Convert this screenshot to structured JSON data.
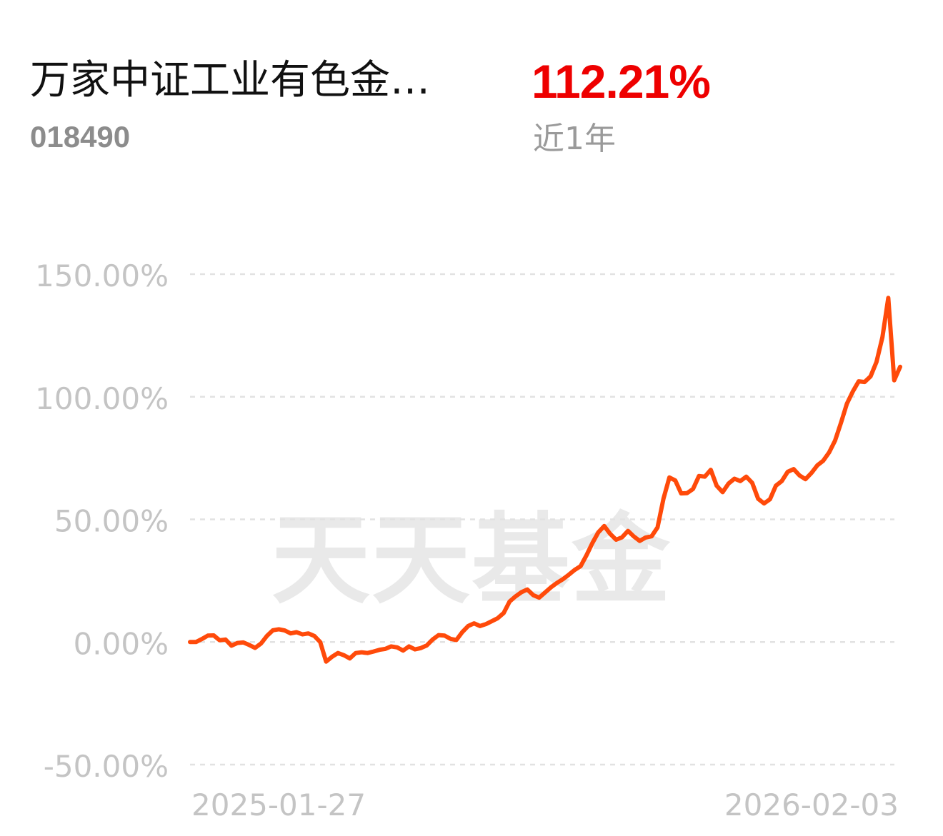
{
  "fund": {
    "name": "万家中证工业有色金…",
    "code": "018490"
  },
  "return": {
    "value": "112.21%",
    "period": "近1年"
  },
  "watermark": "天天基金",
  "colors": {
    "line": "#ff4a0a",
    "return": "#ee0000",
    "axis_text": "#c4c4c4",
    "grid": "#e2e2e2",
    "watermark": "#e9e9e9"
  },
  "chart_data": {
    "type": "line",
    "title": "",
    "xlabel": "",
    "ylabel": "",
    "grid": true,
    "ylim": [
      -50,
      150
    ],
    "y_ticks": [
      150,
      100,
      50,
      0,
      -50
    ],
    "y_tick_labels": [
      "150.00%",
      "100.00%",
      "50.00%",
      "0.00%",
      "-50.00%"
    ],
    "x_range": [
      "2025-01-27",
      "2026-02-03"
    ],
    "x_tick_labels": [
      "2025-01-27",
      "2026-02-03"
    ],
    "series": [
      {
        "values": [
          0,
          0,
          1.2,
          2.6,
          2.7,
          0.7,
          1,
          -1.5,
          -0.4,
          -0.2,
          -1.2,
          -2.4,
          -0.6,
          2.5,
          4.8,
          5.2,
          4.7,
          3.5,
          4,
          3.1,
          3.5,
          2.5,
          0,
          -8,
          -6,
          -4.5,
          -5.4,
          -6.7,
          -4.5,
          -4.2,
          -4.5,
          -3.9,
          -3.2,
          -2.8,
          -1.8,
          -2.2,
          -3.5,
          -1.8,
          -3,
          -2.5,
          -1.4,
          1,
          2.8,
          2.6,
          1.3,
          0.8,
          4,
          6.5,
          7.6,
          6.5,
          7.3,
          8.5,
          9.7,
          11.8,
          16.5,
          18.6,
          20.3,
          21.4,
          19.1,
          18.1,
          20.2,
          22.3,
          24.1,
          25.6,
          27.4,
          29.4,
          30.9,
          35.4,
          40.4,
          44.7,
          47.3,
          44.1,
          41.7,
          42.7,
          45.3,
          43,
          41.2,
          42.6,
          43.1,
          46.7,
          58.4,
          67.1,
          65.9,
          60.6,
          60.7,
          62.4,
          67.7,
          67.4,
          70.2,
          63.7,
          61.1,
          64.6,
          66.6,
          65.6,
          67.4,
          64.9,
          58.4,
          56.5,
          58.2,
          63.7,
          65.6,
          69.4,
          70.5,
          67.9,
          66.4,
          68.9,
          72,
          73.9,
          77.3,
          82.1,
          89.4,
          97.2,
          102.1,
          106.3,
          106,
          108.3,
          114.2,
          124.3,
          140.3,
          106.7,
          112.2
        ]
      }
    ]
  }
}
